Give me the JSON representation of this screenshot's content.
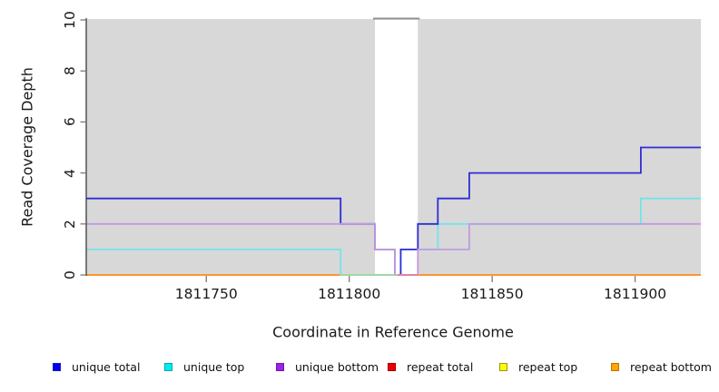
{
  "figure": {
    "x_axis_label": "Coordinate in Reference Genome",
    "y_axis_label": "Read Coverage Depth"
  },
  "chart_data": {
    "type": "line",
    "step_style": "step-after",
    "title": "",
    "xlabel": "Coordinate in Reference Genome",
    "ylabel": "Read Coverage Depth",
    "x_range": [
      1811708,
      1811923
    ],
    "y_range": [
      0,
      10
    ],
    "x_ticks": [
      1811750,
      1811800,
      1811850,
      1811900
    ],
    "y_ticks": [
      0,
      2,
      4,
      6,
      8,
      10
    ],
    "grid": false,
    "plot_bg_color": "#D8D8D8",
    "axis_line_color": "#3a3a3a",
    "tick_mark_color": "#7a7a7a",
    "gap_region": {
      "from": 1811809,
      "to": 1811824,
      "fill": "#FFFFFF",
      "top_border_color": "#8C8C8C"
    },
    "series": [
      {
        "name": "repeat top",
        "line_color": "#F5E626",
        "steps": [
          [
            1811708,
            0
          ]
        ]
      },
      {
        "name": "repeat total",
        "line_color": "#E03030",
        "steps": [
          [
            1811708,
            0
          ]
        ]
      },
      {
        "name": "repeat bottom",
        "line_color": "#FF9E2E",
        "steps": [
          [
            1811708,
            0
          ]
        ]
      },
      {
        "name": "unique top",
        "line_color": "#74E3E8",
        "steps": [
          [
            1811708,
            1
          ],
          [
            1811797,
            0
          ],
          [
            1811818,
            1
          ],
          [
            1811831,
            2
          ],
          [
            1811902,
            3
          ]
        ]
      },
      {
        "name": "unique total",
        "line_color": "#2E2ED6",
        "steps": [
          [
            1811708,
            3
          ],
          [
            1811797,
            2
          ],
          [
            1811809,
            1
          ],
          [
            1811816,
            0
          ],
          [
            1811818,
            1
          ],
          [
            1811824,
            2
          ],
          [
            1811831,
            3
          ],
          [
            1811842,
            4
          ],
          [
            1811902,
            5
          ]
        ]
      },
      {
        "name": "unique bottom",
        "line_color": "#C29ADF",
        "steps": [
          [
            1811708,
            2
          ],
          [
            1811809,
            1
          ],
          [
            1811816,
            0
          ],
          [
            1811824,
            1
          ],
          [
            1811842,
            2
          ]
        ]
      }
    ],
    "baseline_overlays": [
      {
        "from": 1811797,
        "to": 1811817,
        "color": "#A5D6A0"
      },
      {
        "from": 1811817,
        "to": 1811824,
        "color": "#E87E9F"
      }
    ],
    "legend_position": "bottom",
    "legend": [
      {
        "label": "unique total",
        "fill": "#0000EE",
        "border": "#1A1AB0"
      },
      {
        "label": "unique top",
        "fill": "#00EEEE",
        "border": "#0FA0B0"
      },
      {
        "label": "unique bottom",
        "fill": "#A020F0",
        "border": "#6A1B9A"
      },
      {
        "label": "repeat total",
        "fill": "#EE0000",
        "border": "#990000"
      },
      {
        "label": "repeat top",
        "fill": "#FFFF00",
        "border": "#99990F"
      },
      {
        "label": "repeat bottom",
        "fill": "#FFA500",
        "border": "#B87400"
      }
    ]
  }
}
